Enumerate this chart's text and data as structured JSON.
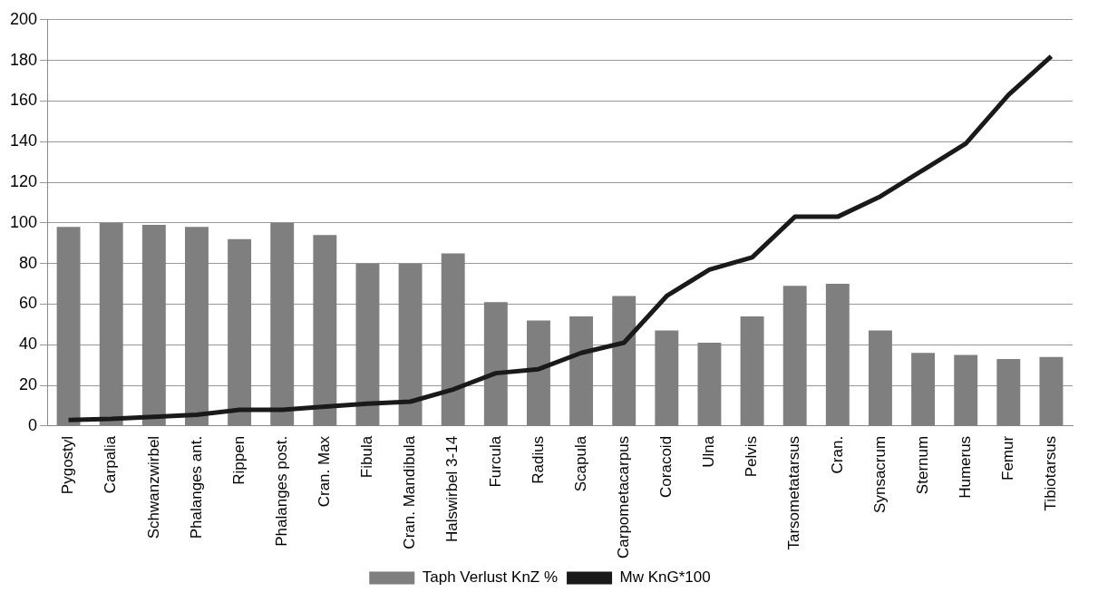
{
  "chart_data": {
    "type": "bar",
    "categories": [
      "Pygostyl",
      "Carpalia",
      "Schwanzwirbel",
      "Phalanges ant.",
      "Rippen",
      "Phalanges post.",
      "Cran. Max",
      "Fibula",
      "Cran. Mandibula",
      "Halswirbel 3-14",
      "Furcula",
      "Radius",
      "Scapula",
      "Carpometacarpus",
      "Coracoid",
      "Ulna",
      "Pelvis",
      "Tarsometatarsus",
      "Cran.",
      "Synsacrum",
      "Sternum",
      "Humerus",
      "Femur",
      "Tibiotarsus"
    ],
    "series": [
      {
        "name": "Taph Verlust KnZ %",
        "color": "#7f7f7f",
        "values": [
          98,
          100,
          99,
          98,
          92,
          100,
          94,
          80,
          80,
          85,
          61,
          52,
          54,
          64,
          47,
          41,
          54,
          69,
          70,
          47,
          36,
          35,
          33,
          34
        ]
      },
      {
        "name": "Mw KnG*100",
        "type": "line",
        "color": "#1a1a1a",
        "values": [
          3,
          3.5,
          4.5,
          5.5,
          8,
          8,
          9.5,
          11,
          12,
          18,
          26,
          28,
          36,
          41,
          64,
          77,
          83,
          103,
          103,
          113,
          126,
          139,
          163,
          182
        ]
      }
    ],
    "ylim": [
      0,
      200
    ],
    "yticks": [
      0,
      20,
      40,
      60,
      80,
      100,
      120,
      140,
      160,
      180,
      200
    ],
    "grid": "y",
    "legend": "bottom",
    "marker": "none"
  }
}
